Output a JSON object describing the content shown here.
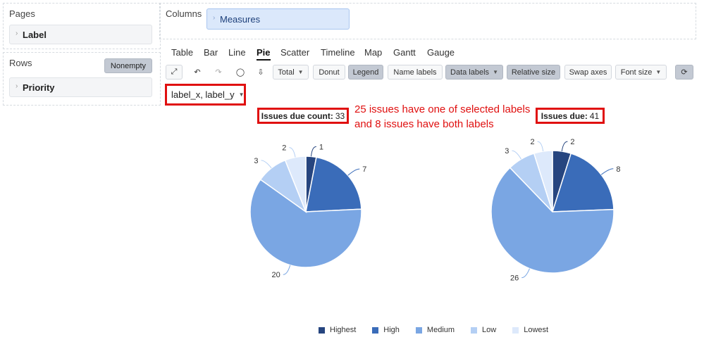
{
  "pages": {
    "title": "Pages",
    "item": "Label"
  },
  "rows": {
    "title": "Rows",
    "nonempty": "Nonempty",
    "item": "Priority"
  },
  "columns": {
    "title": "Columns",
    "item": "Measures"
  },
  "tabs": [
    "Table",
    "Bar",
    "Line",
    "Pie",
    "Scatter",
    "Timeline",
    "Map",
    "Gantt",
    "Gauge"
  ],
  "active_tab": "Pie",
  "toolbar": {
    "total": "Total",
    "donut": "Donut",
    "legend": "Legend",
    "name_labels": "Name labels",
    "data_labels": "Data labels",
    "relative_size": "Relative size",
    "swap_axes": "Swap axes",
    "font_size": "Font size"
  },
  "icons": [
    "expand-icon",
    "undo-icon",
    "redo-icon",
    "comment-icon",
    "export-icon",
    "refresh-icon"
  ],
  "filter": {
    "value": "label_x, label_y"
  },
  "annotation": {
    "line1": "25 issues have one of selected labels",
    "line2": "and 8 issues have both labels",
    "color": "#e01010"
  },
  "chart_data": [
    {
      "type": "pie",
      "title_label": "Issues due count:",
      "title_value": "33",
      "categories": [
        "Highest",
        "High",
        "Medium",
        "Low",
        "Lowest"
      ],
      "values": [
        1,
        7,
        20,
        3,
        2
      ]
    },
    {
      "type": "pie",
      "title_label": "Issues due:",
      "title_value": "41",
      "categories": [
        "Highest",
        "High",
        "Medium",
        "Low",
        "Lowest"
      ],
      "values": [
        2,
        8,
        26,
        3,
        2
      ]
    }
  ],
  "legend": {
    "items": [
      "Highest",
      "High",
      "Medium",
      "Low",
      "Lowest"
    ],
    "colors": [
      "#26457f",
      "#3a6cb9",
      "#7aa6e3",
      "#b4cff4",
      "#dde9fb"
    ]
  }
}
